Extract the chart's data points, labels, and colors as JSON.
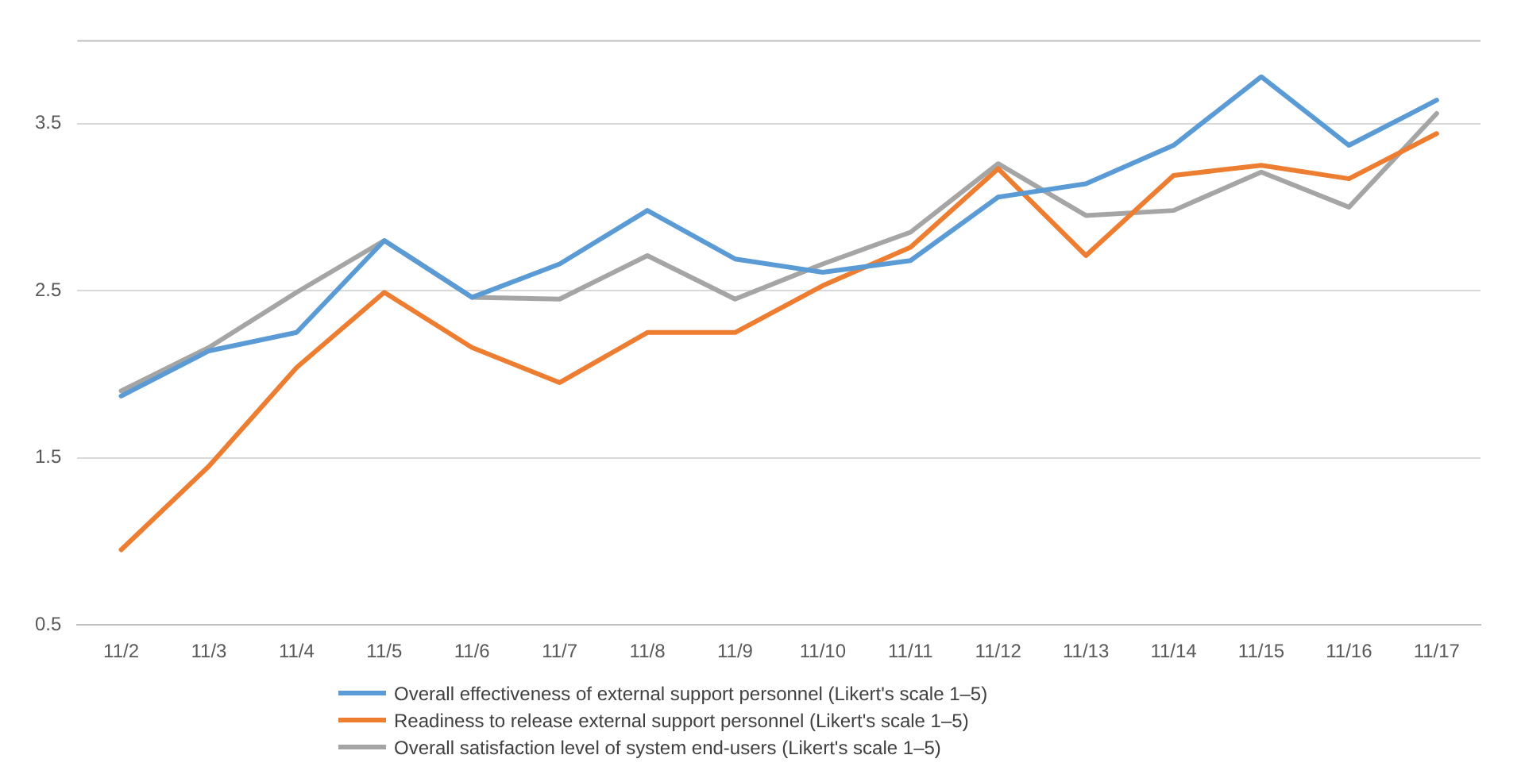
{
  "chart_data": {
    "type": "line",
    "categories": [
      "11/2",
      "11/3",
      "11/4",
      "11/5",
      "11/6",
      "11/7",
      "11/8",
      "11/9",
      "11/10",
      "11/11",
      "11/12",
      "11/13",
      "11/14",
      "11/15",
      "11/16",
      "11/17"
    ],
    "series": [
      {
        "name": "Overall effectiveness of external support personnel (Likert's scale 1–5)",
        "color": "#5b9bd5",
        "values": [
          1.87,
          2.14,
          2.25,
          2.8,
          2.46,
          2.66,
          2.98,
          2.69,
          2.61,
          2.68,
          3.06,
          3.14,
          3.37,
          3.78,
          3.37,
          3.64
        ]
      },
      {
        "name": "Readiness to release external support personnel (Likert's scale 1–5)",
        "color": "#ed7d31",
        "values": [
          0.95,
          1.45,
          2.04,
          2.49,
          2.16,
          1.95,
          2.25,
          2.25,
          2.53,
          2.76,
          3.23,
          2.71,
          3.19,
          3.25,
          3.17,
          3.44
        ]
      },
      {
        "name": "Overall satisfaction level of system end-users (Likert's scale 1–5)",
        "color": "#a5a5a5",
        "values": [
          1.9,
          2.16,
          2.49,
          2.8,
          2.46,
          2.45,
          2.71,
          2.45,
          2.66,
          2.85,
          3.26,
          2.95,
          2.98,
          3.21,
          3.0,
          3.56
        ]
      }
    ],
    "ylim": [
      0.5,
      4.0
    ],
    "yticks": [
      0.5,
      1.5,
      2.5,
      3.5
    ],
    "grid": "y",
    "legend": "bottom",
    "marker": "none",
    "line_style": "solid"
  }
}
